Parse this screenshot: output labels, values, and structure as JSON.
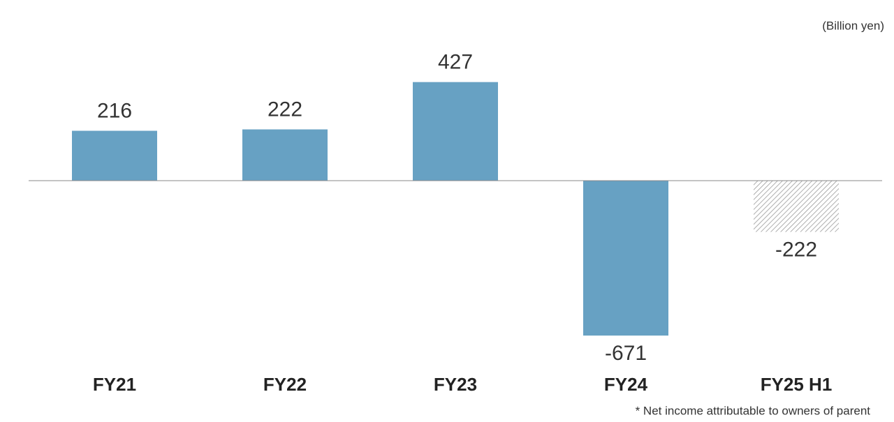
{
  "chart_data": {
    "type": "bar",
    "unit_label": "(Billion yen)",
    "footnote": "* Net income attributable to owners of parent",
    "categories": [
      "FY21",
      "FY22",
      "FY23",
      "FY24",
      "FY25 H1"
    ],
    "values": [
      216,
      222,
      427,
      -671,
      -222
    ],
    "color": "#67a1c3",
    "hatch_color": "#9a9a9a",
    "patterns": [
      "solid",
      "solid",
      "solid",
      "solid",
      "hatched"
    ]
  }
}
